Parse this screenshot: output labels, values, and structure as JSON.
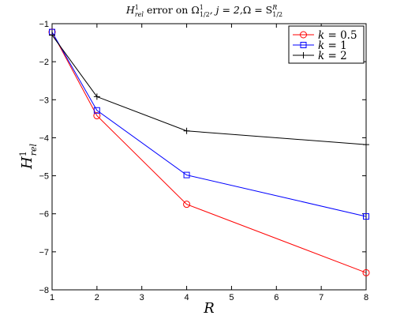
{
  "chart_data": {
    "type": "line",
    "title": "H¹_rel error on Ω¹_1/2, j = 2, Ω = S^R_1/2",
    "title_parts": {
      "h": "H",
      "h_sup": "1",
      "h_sub": "rel",
      "mid": " error on ",
      "omega": "Ω",
      "omega_sup": "1",
      "omega_sub": "1/2",
      "j_part": ", j = 2,",
      "omega2": "Ω = S",
      "s_sup": "R",
      "s_sub": "1/2"
    },
    "xlabel": "R",
    "ylabel": {
      "base": "H",
      "sup": "1",
      "sub": "rel"
    },
    "xlim": [
      1,
      8
    ],
    "ylim": [
      -8,
      -1
    ],
    "xticks": [
      1,
      2,
      3,
      4,
      5,
      6,
      7,
      8
    ],
    "yticks": [
      -1,
      -2,
      -3,
      -4,
      -5,
      -6,
      -7,
      -8
    ],
    "grid": false,
    "legend_position": "top-right",
    "series": [
      {
        "name": "k = 0.5",
        "k_label": "k",
        "k_value": "= 0.5",
        "color": "#ff0000",
        "marker": "circle",
        "x": [
          1,
          2,
          4,
          8
        ],
        "y": [
          -1.22,
          -3.42,
          -5.75,
          -7.55
        ]
      },
      {
        "name": "k = 1",
        "k_label": "k",
        "k_value": "= 1",
        "color": "#0000ff",
        "marker": "square",
        "x": [
          1,
          2,
          4,
          8
        ],
        "y": [
          -1.22,
          -3.28,
          -4.98,
          -6.07
        ]
      },
      {
        "name": "k = 2",
        "k_label": "k",
        "k_value": "= 2",
        "color": "#000000",
        "marker": "plus",
        "x": [
          1,
          2,
          4,
          8
        ],
        "y": [
          -1.3,
          -2.92,
          -3.82,
          -4.18
        ]
      }
    ]
  }
}
